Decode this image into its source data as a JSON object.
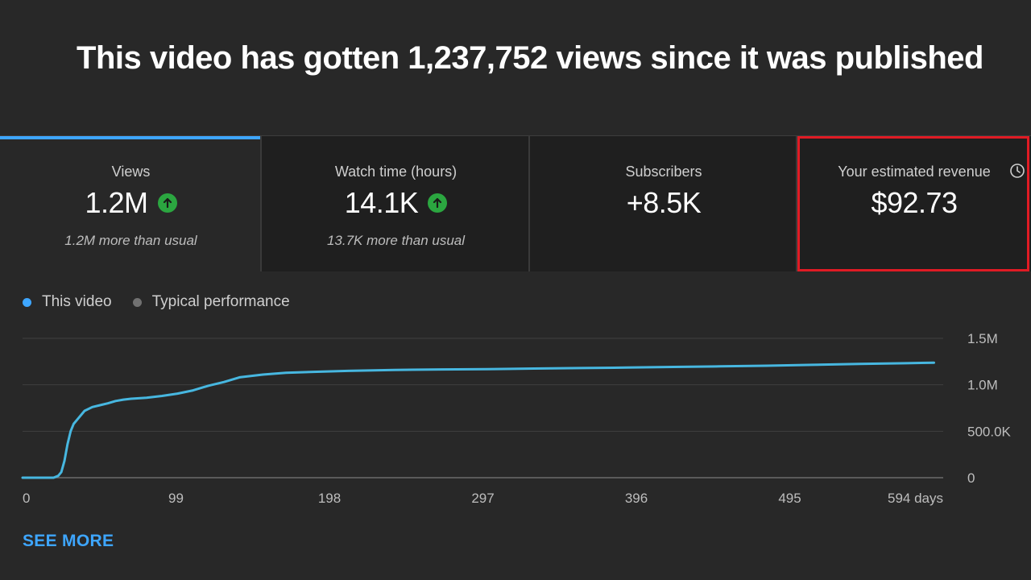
{
  "headline": "This video has gotten 1,237,752 views since it was published",
  "cards": [
    {
      "title": "Views",
      "value": "1.2M",
      "sub": "1.2M more than usual",
      "trend_icon": "arrow-up-icon"
    },
    {
      "title": "Watch time (hours)",
      "value": "14.1K",
      "sub": "13.7K more than usual",
      "trend_icon": "arrow-up-icon"
    },
    {
      "title": "Subscribers",
      "value": "+8.5K"
    },
    {
      "title": "Your estimated revenue",
      "value": "$92.73",
      "info_icon": "clock-icon"
    }
  ],
  "legend": [
    {
      "label": "This video",
      "color": "#3ea6ff"
    },
    {
      "label": "Typical performance",
      "color": "#717171"
    }
  ],
  "see_more": "SEE MORE",
  "colors": {
    "accent": "#3ea6ff",
    "line": "#47b7e0",
    "trend_up": "#2ba640",
    "highlight_box": "#e01b24"
  },
  "chart_data": {
    "type": "line",
    "title": "",
    "xlabel": "",
    "ylabel": "",
    "xlim": [
      0,
      594
    ],
    "ylim": [
      0,
      1500000
    ],
    "x_ticks": [
      0,
      99,
      198,
      297,
      396,
      495,
      594
    ],
    "x_tick_labels": [
      "0",
      "99",
      "198",
      "297",
      "396",
      "495",
      "594 days"
    ],
    "y_ticks": [
      0,
      500000,
      1000000,
      1500000
    ],
    "y_tick_labels": [
      "0",
      "500.0K",
      "1.0M",
      "1.5M"
    ],
    "grid": true,
    "series": [
      {
        "name": "This video",
        "x": [
          0,
          20,
          23,
          25,
          27,
          29,
          31,
          33,
          36,
          40,
          45,
          50,
          55,
          60,
          65,
          70,
          80,
          90,
          100,
          110,
          120,
          130,
          140,
          155,
          170,
          190,
          210,
          240,
          270,
          300,
          330,
          360,
          390,
          420,
          450,
          480,
          510,
          540,
          570,
          588
        ],
        "y": [
          0,
          0,
          20000,
          60000,
          180000,
          360000,
          500000,
          580000,
          640000,
          720000,
          760000,
          780000,
          800000,
          825000,
          840000,
          850000,
          860000,
          880000,
          905000,
          940000,
          990000,
          1030000,
          1080000,
          1110000,
          1130000,
          1140000,
          1150000,
          1160000,
          1165000,
          1168000,
          1175000,
          1180000,
          1185000,
          1192000,
          1198000,
          1205000,
          1215000,
          1225000,
          1232000,
          1237752
        ]
      }
    ]
  }
}
